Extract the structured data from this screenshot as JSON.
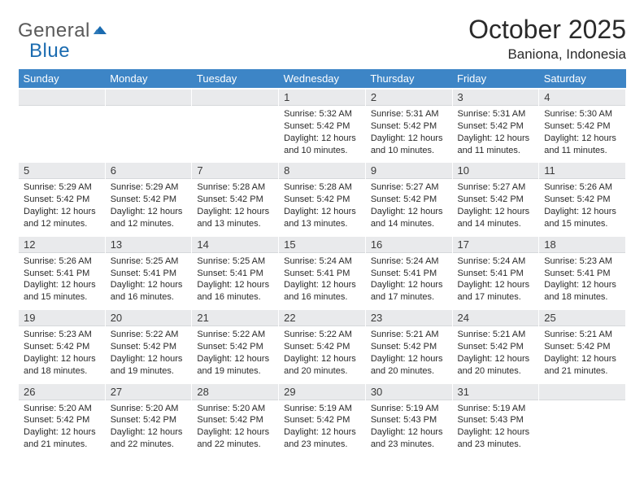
{
  "logo": {
    "word1": "General",
    "word2": "Blue"
  },
  "title": "October 2025",
  "location": "Baniona, Indonesia",
  "colors": {
    "header_bg": "#3d85c6",
    "header_text": "#ffffff",
    "daynum_bg": "#e9eaec",
    "body_text": "#2a2a2a",
    "logo_gray": "#5a5a5a",
    "logo_blue": "#1a6bb0"
  },
  "weekdays": [
    "Sunday",
    "Monday",
    "Tuesday",
    "Wednesday",
    "Thursday",
    "Friday",
    "Saturday"
  ],
  "weeks": [
    [
      null,
      null,
      null,
      {
        "n": "1",
        "sr": "5:32 AM",
        "ss": "5:42 PM",
        "dl": "12 hours and 10 minutes."
      },
      {
        "n": "2",
        "sr": "5:31 AM",
        "ss": "5:42 PM",
        "dl": "12 hours and 10 minutes."
      },
      {
        "n": "3",
        "sr": "5:31 AM",
        "ss": "5:42 PM",
        "dl": "12 hours and 11 minutes."
      },
      {
        "n": "4",
        "sr": "5:30 AM",
        "ss": "5:42 PM",
        "dl": "12 hours and 11 minutes."
      }
    ],
    [
      {
        "n": "5",
        "sr": "5:29 AM",
        "ss": "5:42 PM",
        "dl": "12 hours and 12 minutes."
      },
      {
        "n": "6",
        "sr": "5:29 AM",
        "ss": "5:42 PM",
        "dl": "12 hours and 12 minutes."
      },
      {
        "n": "7",
        "sr": "5:28 AM",
        "ss": "5:42 PM",
        "dl": "12 hours and 13 minutes."
      },
      {
        "n": "8",
        "sr": "5:28 AM",
        "ss": "5:42 PM",
        "dl": "12 hours and 13 minutes."
      },
      {
        "n": "9",
        "sr": "5:27 AM",
        "ss": "5:42 PM",
        "dl": "12 hours and 14 minutes."
      },
      {
        "n": "10",
        "sr": "5:27 AM",
        "ss": "5:42 PM",
        "dl": "12 hours and 14 minutes."
      },
      {
        "n": "11",
        "sr": "5:26 AM",
        "ss": "5:42 PM",
        "dl": "12 hours and 15 minutes."
      }
    ],
    [
      {
        "n": "12",
        "sr": "5:26 AM",
        "ss": "5:41 PM",
        "dl": "12 hours and 15 minutes."
      },
      {
        "n": "13",
        "sr": "5:25 AM",
        "ss": "5:41 PM",
        "dl": "12 hours and 16 minutes."
      },
      {
        "n": "14",
        "sr": "5:25 AM",
        "ss": "5:41 PM",
        "dl": "12 hours and 16 minutes."
      },
      {
        "n": "15",
        "sr": "5:24 AM",
        "ss": "5:41 PM",
        "dl": "12 hours and 16 minutes."
      },
      {
        "n": "16",
        "sr": "5:24 AM",
        "ss": "5:41 PM",
        "dl": "12 hours and 17 minutes."
      },
      {
        "n": "17",
        "sr": "5:24 AM",
        "ss": "5:41 PM",
        "dl": "12 hours and 17 minutes."
      },
      {
        "n": "18",
        "sr": "5:23 AM",
        "ss": "5:41 PM",
        "dl": "12 hours and 18 minutes."
      }
    ],
    [
      {
        "n": "19",
        "sr": "5:23 AM",
        "ss": "5:42 PM",
        "dl": "12 hours and 18 minutes."
      },
      {
        "n": "20",
        "sr": "5:22 AM",
        "ss": "5:42 PM",
        "dl": "12 hours and 19 minutes."
      },
      {
        "n": "21",
        "sr": "5:22 AM",
        "ss": "5:42 PM",
        "dl": "12 hours and 19 minutes."
      },
      {
        "n": "22",
        "sr": "5:22 AM",
        "ss": "5:42 PM",
        "dl": "12 hours and 20 minutes."
      },
      {
        "n": "23",
        "sr": "5:21 AM",
        "ss": "5:42 PM",
        "dl": "12 hours and 20 minutes."
      },
      {
        "n": "24",
        "sr": "5:21 AM",
        "ss": "5:42 PM",
        "dl": "12 hours and 20 minutes."
      },
      {
        "n": "25",
        "sr": "5:21 AM",
        "ss": "5:42 PM",
        "dl": "12 hours and 21 minutes."
      }
    ],
    [
      {
        "n": "26",
        "sr": "5:20 AM",
        "ss": "5:42 PM",
        "dl": "12 hours and 21 minutes."
      },
      {
        "n": "27",
        "sr": "5:20 AM",
        "ss": "5:42 PM",
        "dl": "12 hours and 22 minutes."
      },
      {
        "n": "28",
        "sr": "5:20 AM",
        "ss": "5:42 PM",
        "dl": "12 hours and 22 minutes."
      },
      {
        "n": "29",
        "sr": "5:19 AM",
        "ss": "5:42 PM",
        "dl": "12 hours and 23 minutes."
      },
      {
        "n": "30",
        "sr": "5:19 AM",
        "ss": "5:43 PM",
        "dl": "12 hours and 23 minutes."
      },
      {
        "n": "31",
        "sr": "5:19 AM",
        "ss": "5:43 PM",
        "dl": "12 hours and 23 minutes."
      },
      null
    ]
  ]
}
